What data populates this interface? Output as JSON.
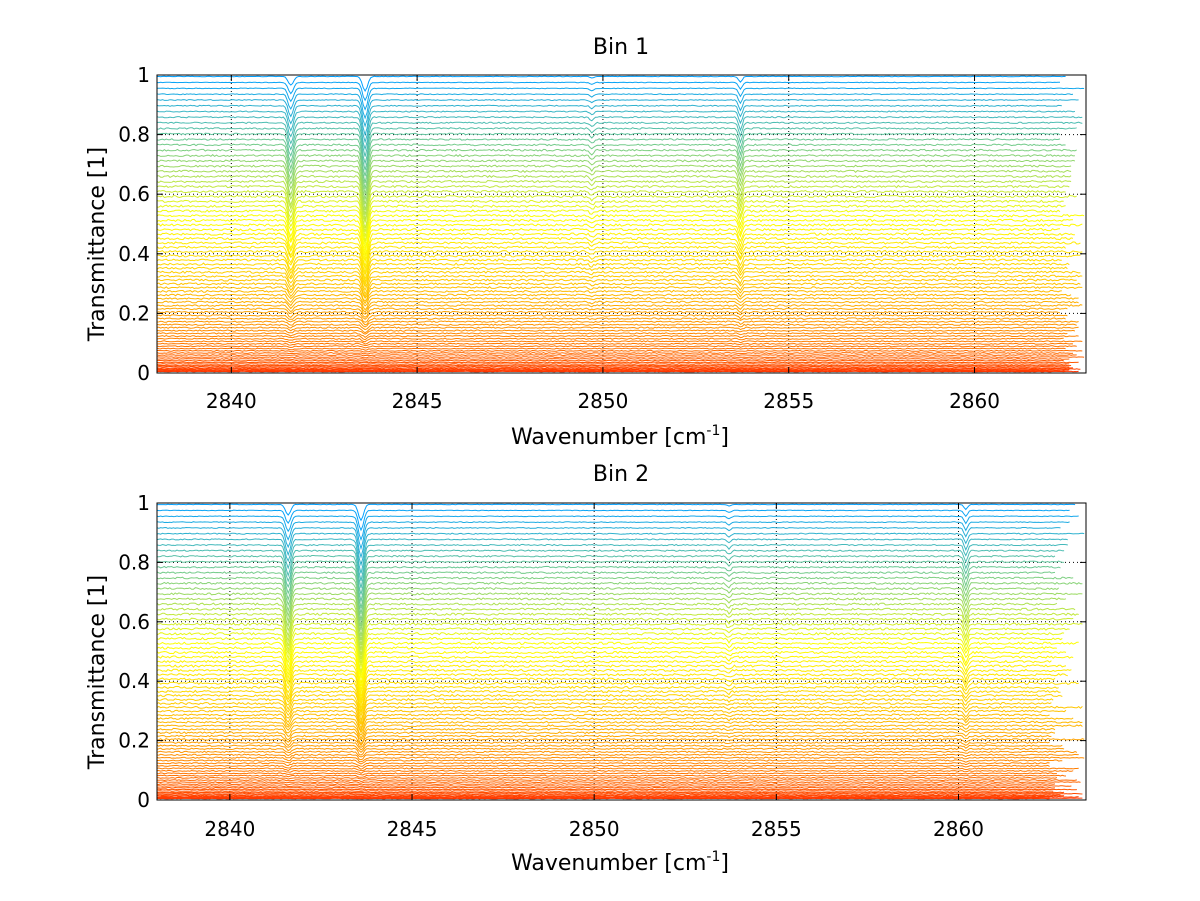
{
  "chart_data": [
    {
      "type": "line",
      "title": "Bin 1",
      "xlabel": "Wavenumber [cm",
      "xlabel_sup": "-1",
      "xlabel_close": "]",
      "ylabel": "Transmittance [1]",
      "xlim": [
        2838,
        2863
      ],
      "ylim": [
        0,
        1
      ],
      "xticks": [
        2840,
        2845,
        2850,
        2855,
        2860
      ],
      "yticks": [
        0,
        0.2,
        0.4,
        0.6,
        0.8,
        1
      ],
      "xtick_labels": [
        "2840",
        "2845",
        "2850",
        "2855",
        "2860"
      ],
      "ytick_labels": [
        "0",
        "0.2",
        "0.4",
        "0.6",
        "0.8",
        "1"
      ],
      "grid": true,
      "legend": "none",
      "series_count": 80,
      "series_level_range": [
        0.005,
        0.995
      ],
      "x_end_range": [
        2862.3,
        2863.0
      ],
      "absorption_lines": [
        {
          "x": 2841.6,
          "depth": 0.11,
          "width": 0.07
        },
        {
          "x": 2843.6,
          "depth": 0.18,
          "width": 0.07
        },
        {
          "x": 2853.7,
          "depth": 0.07,
          "width": 0.05
        },
        {
          "x": 2849.7,
          "depth": 0.02,
          "width": 0.05
        }
      ],
      "colormap": [
        "#00a0ff",
        "#ffff00",
        "#ff9900",
        "#ff3300"
      ]
    },
    {
      "type": "line",
      "title": "Bin 2",
      "xlabel": "Wavenumber [cm",
      "xlabel_sup": "-1",
      "xlabel_close": "]",
      "ylabel": "Transmittance [1]",
      "xlim": [
        2838,
        2863.5
      ],
      "ylim": [
        0,
        1
      ],
      "xticks": [
        2840,
        2845,
        2850,
        2855,
        2860
      ],
      "yticks": [
        0,
        0.2,
        0.4,
        0.6,
        0.8,
        1
      ],
      "xtick_labels": [
        "2840",
        "2845",
        "2850",
        "2855",
        "2860"
      ],
      "ytick_labels": [
        "0",
        "0.2",
        "0.4",
        "0.6",
        "0.8",
        "1"
      ],
      "grid": true,
      "legend": "none",
      "series_count": 80,
      "series_level_range": [
        0.005,
        0.995
      ],
      "x_end_range": [
        2862.5,
        2863.5
      ],
      "absorption_lines": [
        {
          "x": 2841.6,
          "depth": 0.13,
          "width": 0.07
        },
        {
          "x": 2843.6,
          "depth": 0.2,
          "width": 0.07
        },
        {
          "x": 2860.2,
          "depth": 0.06,
          "width": 0.05
        },
        {
          "x": 2853.7,
          "depth": 0.02,
          "width": 0.05
        }
      ],
      "colormap": [
        "#00a0ff",
        "#ffff00",
        "#ff9900",
        "#ff3300"
      ]
    }
  ]
}
